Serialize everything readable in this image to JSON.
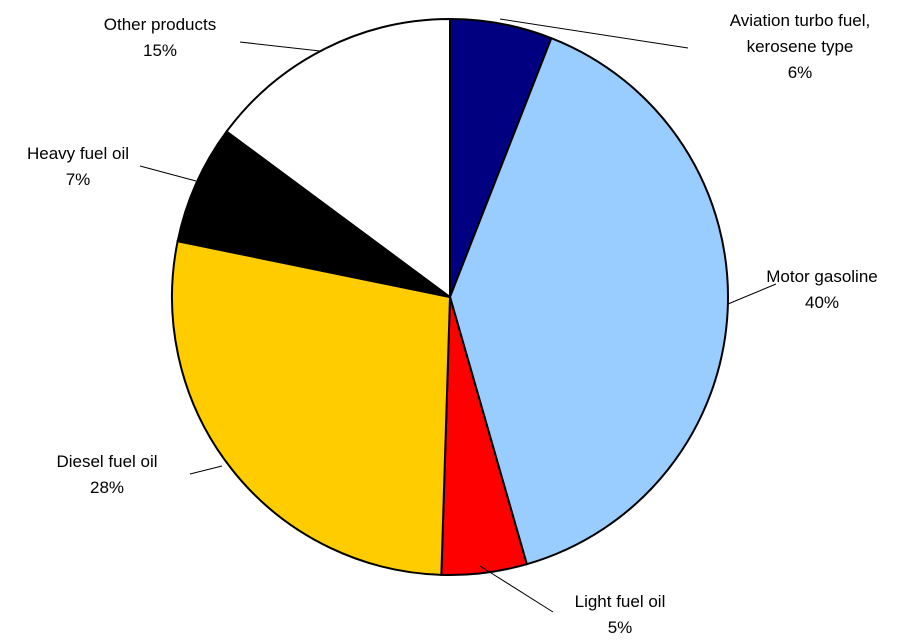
{
  "chart_data": {
    "type": "pie",
    "title": "",
    "start": "top, clockwise",
    "slices": [
      {
        "name": "Aviation turbo fuel, kerosene type",
        "label_lines": [
          "Aviation turbo fuel,",
          "kerosene type"
        ],
        "pct_label": "6%",
        "value": 6,
        "color": "#000080"
      },
      {
        "name": "Motor gasoline",
        "label_lines": [
          "Motor gasoline"
        ],
        "pct_label": "40%",
        "value": 40,
        "color": "#99CCFF"
      },
      {
        "name": "Light fuel oil",
        "label_lines": [
          "Light fuel oil"
        ],
        "pct_label": "5%",
        "value": 5,
        "color": "#FF0000"
      },
      {
        "name": "Diesel fuel oil",
        "label_lines": [
          "Diesel fuel oil"
        ],
        "pct_label": "28%",
        "value": 28,
        "color": "#FFCC00"
      },
      {
        "name": "Heavy fuel oil",
        "label_lines": [
          "Heavy fuel oil"
        ],
        "pct_label": "7%",
        "value": 7,
        "color": "#000000"
      },
      {
        "name": "Other products",
        "label_lines": [
          "Other products"
        ],
        "pct_label": "15%",
        "value": 15,
        "color": "#FFFFFF"
      }
    ]
  }
}
